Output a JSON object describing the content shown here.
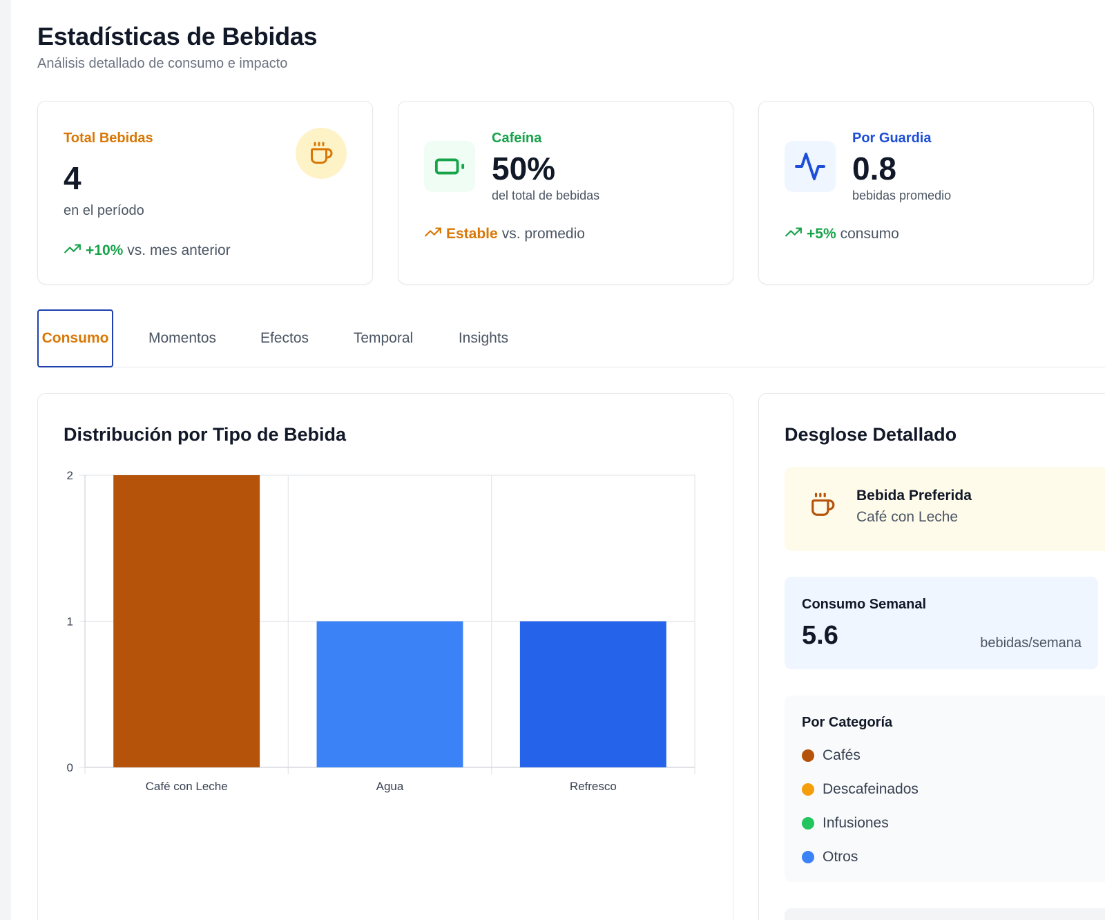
{
  "header": {
    "title": "Estadísticas de Bebidas",
    "subtitle": "Análisis detallado de consumo e impacto"
  },
  "stats": [
    {
      "label": "Total Bebidas",
      "value": "4",
      "description": "en el período",
      "trend_strong": "+10%",
      "trend_rest": "vs. mes anterior",
      "icon": "coffee-cup-icon",
      "accent": "#d97706"
    },
    {
      "label": "Cafeína",
      "value": "50%",
      "description": "del total de bebidas",
      "trend_strong": "Estable",
      "trend_rest": "vs. promedio",
      "icon": "battery-icon",
      "accent": "#16a34a"
    },
    {
      "label": "Por Guardia",
      "value": "0.8",
      "description": "bebidas promedio",
      "trend_strong": "+5%",
      "trend_rest": "consumo",
      "icon": "activity-pulse-icon",
      "accent": "#1d4ed8"
    }
  ],
  "tabs": [
    {
      "label": "Consumo",
      "active": true
    },
    {
      "label": "Momentos",
      "active": false
    },
    {
      "label": "Efectos",
      "active": false
    },
    {
      "label": "Temporal",
      "active": false
    },
    {
      "label": "Insights",
      "active": false
    }
  ],
  "chart_panel": {
    "title": "Distribución por Tipo de Bebida"
  },
  "chart_data": {
    "type": "bar",
    "title": "Distribución por Tipo de Bebida",
    "categories": [
      "Café con Leche",
      "Agua",
      "Refresco"
    ],
    "values": [
      2,
      1,
      1
    ],
    "colors": [
      "#b45309",
      "#3b82f6",
      "#2563eb"
    ],
    "ylim": [
      0,
      2
    ],
    "yticks": [
      "0",
      "1",
      "2"
    ],
    "grid": true,
    "xlabel": "",
    "ylabel": ""
  },
  "breakdown": {
    "title": "Desglose Detallado",
    "preferred": {
      "title": "Bebida Preferida",
      "value": "Café con Leche",
      "icon": "coffee-cup-icon"
    },
    "weekly": {
      "title": "Consumo Semanal",
      "value": "5.6",
      "unit": "bebidas/semana"
    },
    "categories": {
      "title": "Por Categoría",
      "items": [
        {
          "label": "Cafés",
          "color": "#b45309"
        },
        {
          "label": "Descafeinados",
          "color": "#f59e0b"
        },
        {
          "label": "Infusiones",
          "color": "#22c55e"
        },
        {
          "label": "Otros",
          "color": "#3b82f6"
        }
      ]
    }
  }
}
